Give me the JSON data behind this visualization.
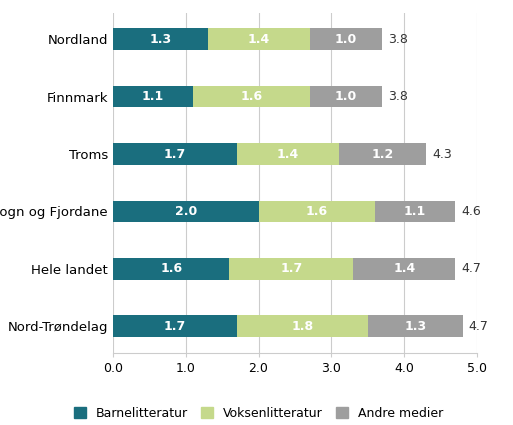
{
  "categories": [
    "Nordland",
    "Finnmark",
    "Troms",
    "Sogn og Fjordane",
    "Hele landet",
    "Nord-Trøndelag"
  ],
  "barnelitteratur": [
    1.3,
    1.1,
    1.7,
    2.0,
    1.6,
    1.7
  ],
  "voksenlitteratur": [
    1.4,
    1.6,
    1.4,
    1.6,
    1.7,
    1.8
  ],
  "andre_medier": [
    1.0,
    1.0,
    1.2,
    1.1,
    1.4,
    1.3
  ],
  "totals": [
    3.8,
    3.8,
    4.3,
    4.6,
    4.7,
    4.7
  ],
  "color_barn": "#1a6e7e",
  "color_voksen": "#c5d98b",
  "color_andre": "#9e9e9e",
  "xlim": [
    0,
    5.0
  ],
  "xticks": [
    0.0,
    1.0,
    2.0,
    3.0,
    4.0,
    5.0
  ],
  "legend_labels": [
    "Barnelitteratur",
    "Voksenlitteratur",
    "Andre medier"
  ],
  "bar_text_color_white": "#ffffff",
  "bar_fontsize": 9,
  "total_fontsize": 9,
  "total_color": "#333333",
  "background_color": "#ffffff",
  "bar_height": 0.38,
  "ytick_fontsize": 9.5,
  "xtick_fontsize": 9
}
